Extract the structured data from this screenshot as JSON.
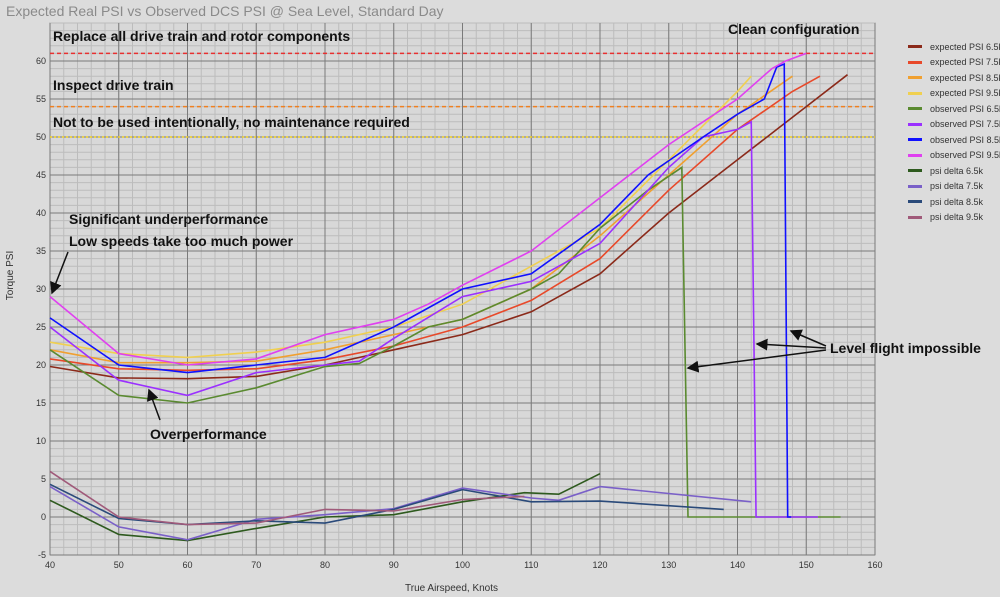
{
  "chart_data": {
    "type": "line",
    "title": "Expected Real PSI vs Observed DCS PSI @ Sea Level, Standard Day",
    "xlabel": "True Airspeed, Knots",
    "ylabel": "Torque PSI",
    "xlim": [
      40,
      160
    ],
    "ylim": [
      -5,
      65
    ],
    "xticks": [
      40,
      50,
      60,
      70,
      80,
      90,
      100,
      110,
      120,
      130,
      140,
      150,
      160
    ],
    "yticks": [
      -5,
      0,
      5,
      10,
      15,
      20,
      25,
      30,
      35,
      40,
      45,
      50,
      55,
      60
    ],
    "grid": true,
    "legend_position": "right",
    "series": [
      {
        "name": "expected PSI 6.5k",
        "color": "#8b2a1a",
        "x": [
          40,
          50,
          60,
          70,
          80,
          90,
          100,
          110,
          120,
          130,
          140,
          150,
          156
        ],
        "y": [
          19.8,
          18.3,
          18.2,
          18.5,
          20,
          22,
          24,
          27,
          32,
          40,
          47,
          54,
          58.2
        ]
      },
      {
        "name": "expected PSI 7.5k",
        "color": "#e8492a",
        "x": [
          40,
          50,
          60,
          70,
          80,
          90,
          100,
          110,
          120,
          130,
          140,
          148,
          152
        ],
        "y": [
          20.8,
          19.5,
          19.3,
          19.5,
          20.7,
          22.5,
          25,
          28.5,
          34,
          43,
          51,
          56,
          58
        ]
      },
      {
        "name": "expected PSI 8.5k",
        "color": "#f0a030",
        "x": [
          40,
          50,
          60,
          70,
          80,
          90,
          100,
          110,
          120,
          130,
          140,
          148
        ],
        "y": [
          22,
          20.3,
          20.3,
          20.5,
          22,
          24,
          26,
          30,
          37,
          45,
          53,
          58
        ]
      },
      {
        "name": "expected PSI 9.5k",
        "color": "#f0d050",
        "x": [
          40,
          50,
          60,
          70,
          80,
          90,
          100,
          110,
          120,
          130,
          140,
          142
        ],
        "y": [
          23,
          21.5,
          21,
          21.7,
          23,
          25,
          28,
          33,
          38,
          47,
          56,
          58
        ]
      },
      {
        "name": "observed PSI 6.5k",
        "color": "#5a8a30",
        "x": [
          40,
          50,
          60,
          70,
          80,
          85,
          90,
          95,
          100,
          110,
          114,
          120,
          127,
          131.9,
          132.8,
          155
        ],
        "y": [
          22,
          16,
          15,
          17,
          19.8,
          20.2,
          22.5,
          25,
          26,
          30,
          32,
          38,
          43,
          46,
          0,
          0
        ]
      },
      {
        "name": "observed PSI 7.5k",
        "color": "#9b30ff",
        "x": [
          40,
          50,
          60,
          70,
          80,
          85,
          90,
          100,
          110,
          120,
          130,
          135,
          140,
          142,
          142.7,
          151.7
        ],
        "y": [
          25,
          18,
          16,
          19,
          20,
          20.5,
          23.5,
          29,
          31,
          36,
          46,
          50,
          51,
          52,
          0,
          0
        ]
      },
      {
        "name": "observed PSI 8.5k",
        "color": "#1010ff",
        "x": [
          40,
          50,
          60,
          70,
          80,
          90,
          100,
          110,
          120,
          127,
          135,
          140,
          143.9,
          145.7,
          146.8,
          147.3,
          147.8
        ],
        "y": [
          26.2,
          20,
          19,
          20,
          21,
          25,
          30,
          32,
          38.5,
          45,
          50,
          53,
          55,
          59.2,
          59.6,
          0,
          0
        ]
      },
      {
        "name": "observed PSI 9.5k",
        "color": "#e040f0",
        "x": [
          40,
          50,
          60,
          70,
          80,
          90,
          95,
          100,
          110,
          120,
          130,
          140,
          145,
          147,
          150
        ],
        "y": [
          29,
          21.5,
          20,
          20.8,
          24,
          26,
          28,
          30.5,
          35,
          42,
          49,
          55,
          59,
          60,
          61
        ]
      },
      {
        "name": "psi delta 6.5k",
        "color": "#2e5a1e",
        "x": [
          40,
          50,
          60,
          70,
          80,
          90,
          100,
          109,
          114,
          120
        ],
        "y": [
          2.2,
          -2.3,
          -3.1,
          -1.5,
          0,
          0.3,
          2,
          3.2,
          3,
          5.7
        ]
      },
      {
        "name": "psi delta 7.5k",
        "color": "#7a60c8",
        "x": [
          40,
          50,
          60,
          70,
          80,
          90,
          100,
          110,
          114,
          120,
          142
        ],
        "y": [
          4,
          -1.3,
          -3,
          -0.3,
          0.3,
          1.1,
          3.8,
          2.5,
          2.2,
          4,
          2
        ]
      },
      {
        "name": "psi delta 8.5k",
        "color": "#2a4a7a",
        "x": [
          40,
          50,
          60,
          70,
          80,
          90,
          100,
          110,
          120,
          138
        ],
        "y": [
          4.3,
          -0.2,
          -1,
          -0.5,
          -0.8,
          1,
          3.6,
          2,
          2.1,
          1
        ]
      },
      {
        "name": "psi delta 9.5k",
        "color": "#a05a7a",
        "x": [
          40,
          50,
          60,
          70,
          80,
          90,
          100,
          109
        ],
        "y": [
          6,
          0,
          -1,
          -0.8,
          1,
          0.8,
          2.3,
          2.7
        ]
      }
    ],
    "thresholds": [
      {
        "value": 61,
        "color": "#e83030",
        "style": "dashed",
        "label": "Replace all drive train and rotor components"
      },
      {
        "value": 54,
        "color": "#f08020",
        "style": "dashed",
        "label": "Inspect drive train"
      },
      {
        "value": 50,
        "color": "#f0d020",
        "style": "dotted",
        "label": "Not to be used intentionally, no maintenance required"
      }
    ],
    "annotations": [
      {
        "id": "clean",
        "text": "Clean configuration"
      },
      {
        "id": "under1",
        "text": "Significant underperformance"
      },
      {
        "id": "under2",
        "text": "Low speeds take too much power"
      },
      {
        "id": "over",
        "text": "Overperformance"
      },
      {
        "id": "level",
        "text": "Level flight impossible"
      }
    ]
  }
}
